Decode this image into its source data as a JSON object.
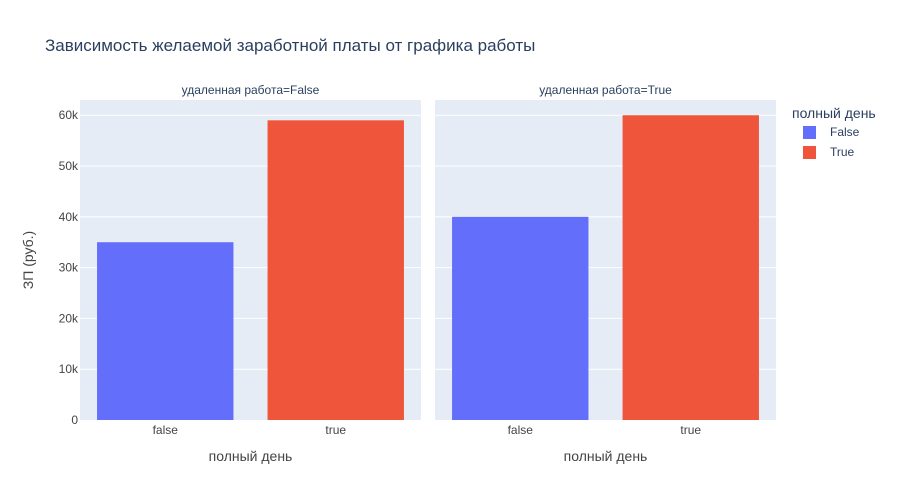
{
  "chart_data": {
    "type": "bar",
    "title": "Зависимость желаемой заработной платы от графика работы",
    "ylabel": "ЗП (руб.)",
    "xlabel": "полный день",
    "ylim": [
      0,
      63000
    ],
    "yticks": [
      0,
      10000,
      20000,
      30000,
      40000,
      50000,
      60000
    ],
    "ytick_labels": [
      "0",
      "10k",
      "20k",
      "30k",
      "40k",
      "50k",
      "60k"
    ],
    "grid": true,
    "legend": {
      "title": "полный день",
      "placement": "top-right",
      "entries": [
        {
          "name": "False",
          "color": "#636efa"
        },
        {
          "name": "True",
          "color": "#ef553b"
        }
      ]
    },
    "facets": [
      {
        "title": "удаленная работа=False",
        "categories": [
          "false",
          "true"
        ],
        "values": [
          35000,
          59000
        ],
        "colors": [
          "#636efa",
          "#ef553b"
        ]
      },
      {
        "title": "удаленная работа=True",
        "categories": [
          "false",
          "true"
        ],
        "values": [
          40000,
          60000
        ],
        "colors": [
          "#636efa",
          "#ef553b"
        ]
      }
    ]
  }
}
